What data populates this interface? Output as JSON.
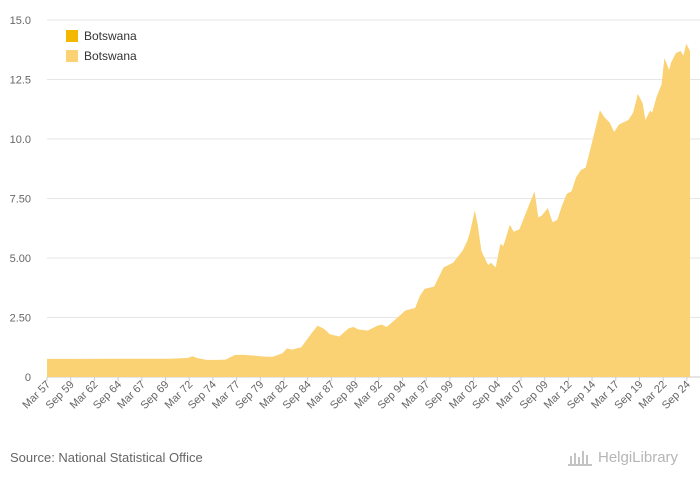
{
  "chart_data": {
    "type": "area",
    "title": "",
    "xlabel": "",
    "ylabel": "",
    "ylim": [
      0,
      15
    ],
    "yticks": [
      0,
      2.5,
      5.0,
      7.5,
      10.0,
      12.5,
      15.0
    ],
    "ytick_labels": [
      "0",
      "2.50",
      "5.00",
      "7.50",
      "10.0",
      "12.5",
      "15.0"
    ],
    "xlim": [
      1957.17,
      2025.0
    ],
    "xticks": [
      1957.17,
      1959.67,
      1962.17,
      1964.67,
      1967.17,
      1969.67,
      1972.17,
      1974.67,
      1977.17,
      1979.67,
      1982.17,
      1984.67,
      1987.17,
      1989.67,
      1992.17,
      1994.67,
      1997.17,
      1999.67,
      2002.17,
      2004.67,
      2007.17,
      2009.67,
      2012.17,
      2014.67,
      2017.17,
      2019.67,
      2022.17,
      2024.67
    ],
    "xtick_labels": [
      "Mar 57",
      "Sep 59",
      "Mar 62",
      "Sep 64",
      "Mar 67",
      "Sep 69",
      "Mar 72",
      "Sep 74",
      "Mar 77",
      "Sep 79",
      "Mar 82",
      "Sep 84",
      "Mar 87",
      "Sep 89",
      "Mar 92",
      "Sep 94",
      "Mar 97",
      "Sep 99",
      "Mar 02",
      "Sep 04",
      "Mar 07",
      "Sep 09",
      "Mar 12",
      "Sep 14",
      "Mar 17",
      "Sep 19",
      "Mar 22",
      "Sep 24"
    ],
    "grid": true,
    "legend_position": "top-left",
    "legend": [
      {
        "name": "Botswana",
        "color": "#f5b800"
      },
      {
        "name": "Botswana",
        "color": "#fad173"
      }
    ],
    "series": [
      {
        "name": "Botswana",
        "color": "#fad173",
        "x": [
          1957.17,
          1960,
          1965,
          1970,
          1971,
          1972,
          1972.5,
          1973,
          1974,
          1975,
          1975.2,
          1976,
          1977,
          1978,
          1979,
          1980,
          1980.5,
          1981,
          1982,
          1982.5,
          1983,
          1984,
          1985,
          1985.7,
          1986,
          1986.3,
          1986.6,
          1987,
          1988,
          1989,
          1989.5,
          1990,
          1991,
          1992,
          1992.5,
          1993,
          1994,
          1995,
          1996,
          1996.5,
          1997,
          1998,
          1999,
          2000,
          2001,
          2001.5,
          2001.8,
          2002.3,
          2002.6,
          2003,
          2003.7,
          2004,
          2004.5,
          2005,
          2005.3,
          2006,
          2006.4,
          2007,
          2007.5,
          2008,
          2008.6,
          2009,
          2009.4,
          2010,
          2010.5,
          2011,
          2011.5,
          2012,
          2012.5,
          2013,
          2013.5,
          2014,
          2014.5,
          2015,
          2015.5,
          2016,
          2016.5,
          2017,
          2017.5,
          2018,
          2018.5,
          2019,
          2019.5,
          2020,
          2020.3,
          2020.8,
          2021,
          2021.5,
          2022,
          2022.3,
          2022.5,
          2022.8,
          2023,
          2023.5,
          2024,
          2024.3,
          2024.6,
          2025
        ],
        "values": [
          0.76,
          0.76,
          0.77,
          0.77,
          0.78,
          0.8,
          0.87,
          0.8,
          0.72,
          0.72,
          0.72,
          0.73,
          0.93,
          0.93,
          0.9,
          0.86,
          0.85,
          0.85,
          1.0,
          1.2,
          1.15,
          1.25,
          1.8,
          2.15,
          2.1,
          2.05,
          1.95,
          1.8,
          1.7,
          2.05,
          2.1,
          2.0,
          1.95,
          2.15,
          2.2,
          2.1,
          2.45,
          2.8,
          2.9,
          3.4,
          3.7,
          3.8,
          4.6,
          4.8,
          5.3,
          5.7,
          6.1,
          7.0,
          6.4,
          5.3,
          4.7,
          4.8,
          4.6,
          5.6,
          5.5,
          6.4,
          6.1,
          6.2,
          6.7,
          7.2,
          7.8,
          6.7,
          6.8,
          7.1,
          6.5,
          6.6,
          7.2,
          7.7,
          7.8,
          8.4,
          8.7,
          8.8,
          9.6,
          10.4,
          11.2,
          10.9,
          10.7,
          10.3,
          10.6,
          10.7,
          10.8,
          11.1,
          11.9,
          11.5,
          10.8,
          11.2,
          11.1,
          11.8,
          12.3,
          13.4,
          13.2,
          12.9,
          13.2,
          13.6,
          13.7,
          13.5,
          14.0,
          13.7
        ]
      }
    ]
  },
  "footer": {
    "source": "Source: National Statistical Office",
    "brand": "HelgiLibrary"
  },
  "colors": {
    "area_fill": "#fad173",
    "legend_dark": "#f5b800",
    "grid": "#e6e6e6",
    "axis": "#cccccc"
  }
}
